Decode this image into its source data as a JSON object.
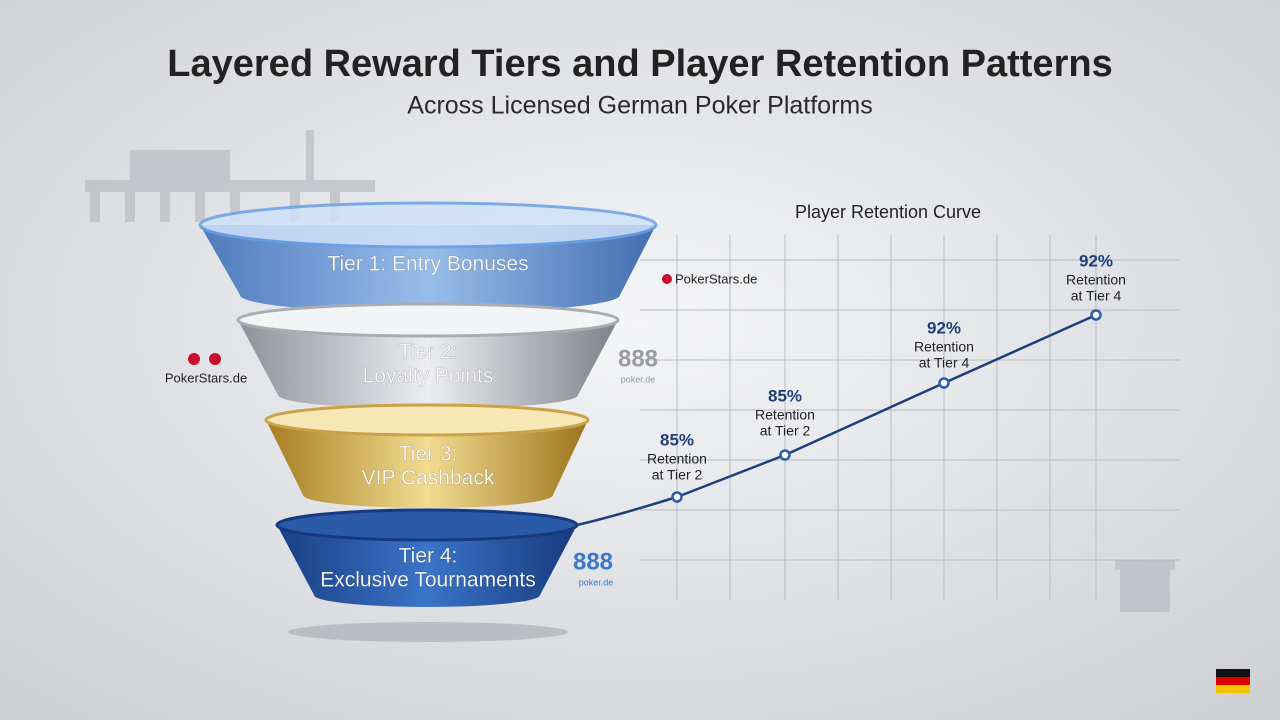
{
  "header": {
    "title": "Layered Reward Tiers and Player Retention Patterns",
    "subtitle": "Across Licensed German Poker Platforms"
  },
  "funnel": {
    "tiers": [
      {
        "lines": [
          "Tier 1: Entry Bonuses"
        ]
      },
      {
        "lines": [
          "Tier 2:",
          "Loyalty Points"
        ]
      },
      {
        "lines": [
          "Tier 3:",
          "VIP Cashback"
        ]
      },
      {
        "lines": [
          "Tier 4:",
          "Exclusive Tournaments"
        ]
      }
    ]
  },
  "brands": {
    "pokerstars_top": "PokerStars.de",
    "pokerstars_left": "PokerStars.de",
    "brand_888_mid": "888",
    "brand_888_mid_sub": "poker.de",
    "brand_888_low": "888",
    "brand_888_low_sub": "poker.de"
  },
  "retention": {
    "title": "Player Retention Curve",
    "points": [
      {
        "value": "85%",
        "lines": [
          "Retention",
          "at Tier 2"
        ]
      },
      {
        "value": "85%",
        "lines": [
          "Retention",
          "at Tier 2"
        ]
      },
      {
        "value": "92%",
        "lines": [
          "Retention",
          "at Tier 4"
        ]
      },
      {
        "value": "92%",
        "lines": [
          "Retention",
          "at Tier 4"
        ]
      }
    ]
  }
}
